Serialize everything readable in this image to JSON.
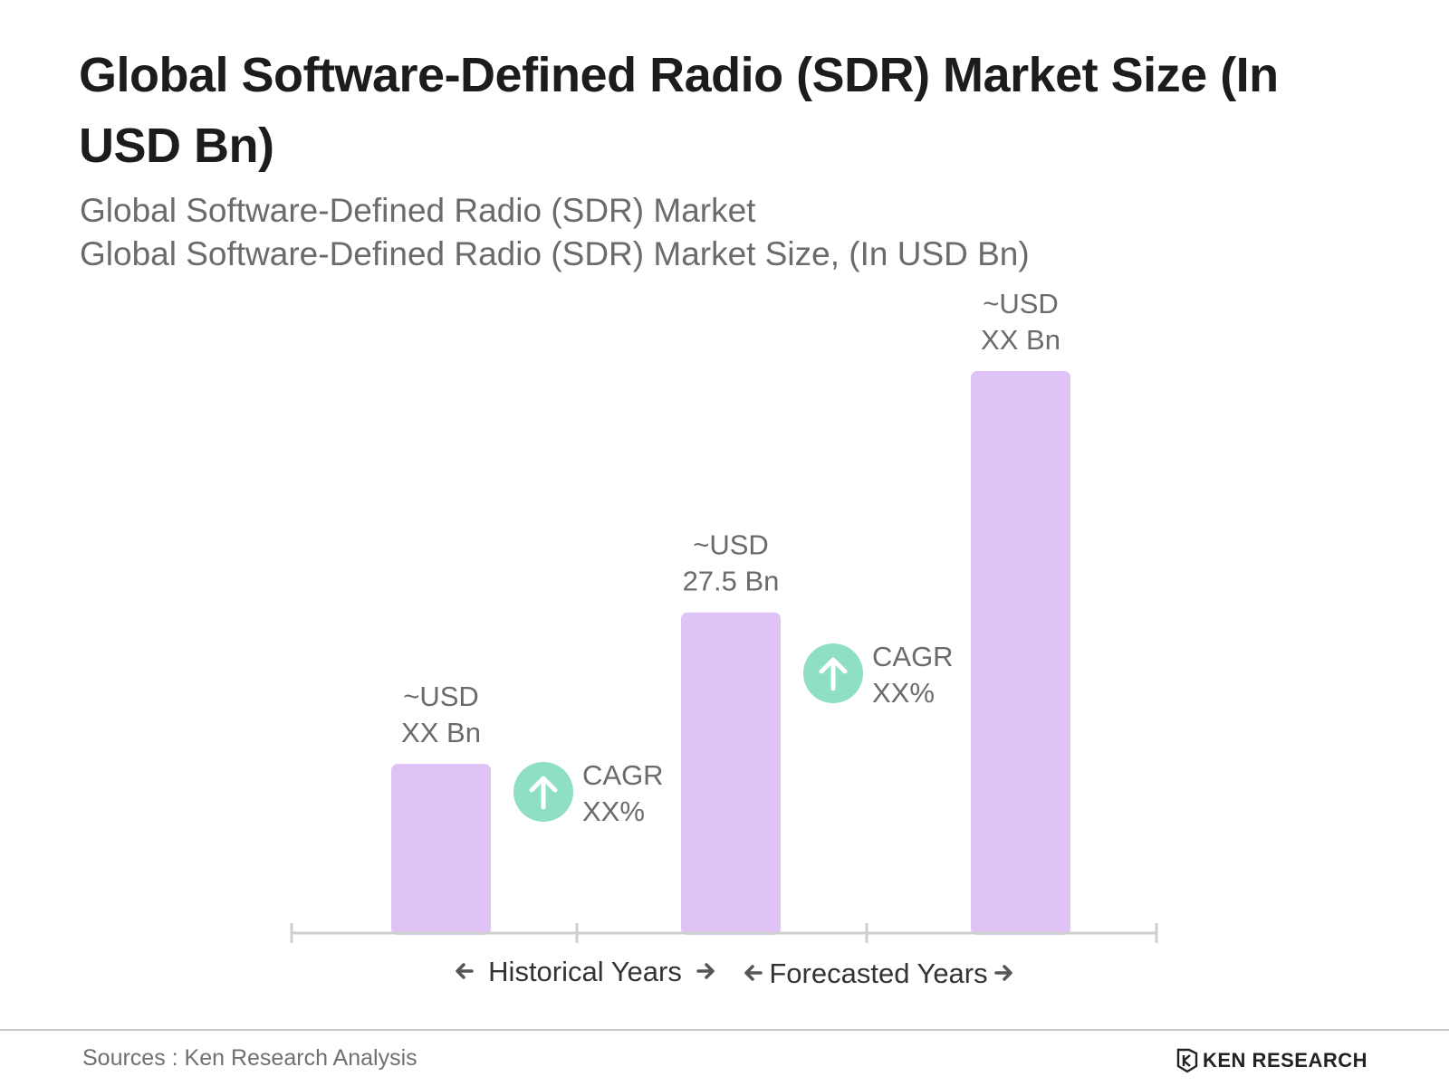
{
  "title": "Global Software-Defined Radio (SDR) Market Size (In USD Bn)",
  "subtitle_1": "Global Software-Defined Radio (SDR) Market",
  "subtitle_2": "Global Software-Defined Radio (SDR) Market Size, (In USD Bn)",
  "footer": {
    "source": "Sources : Ken Research Analysis",
    "logo_text": "KEN RESEARCH"
  },
  "colors": {
    "bar": "#dfc3f7",
    "cagr_badge": "#8fdfc5",
    "axis": "#cfcfcf",
    "label_text": "#6b6b6b"
  },
  "chart_data": {
    "type": "bar",
    "categories": [
      "",
      "",
      ""
    ],
    "values": [
      14.5,
      27.5,
      48.2
    ],
    "data_labels": [
      [
        "~USD",
        "XX Bn"
      ],
      [
        "~USD",
        "27.5 Bn"
      ],
      [
        "~USD",
        "XX Bn"
      ]
    ],
    "ylim": [
      0,
      50
    ],
    "grid": false,
    "cagr_annotations": [
      {
        "between": [
          0,
          1
        ],
        "label": "CAGR",
        "value": "XX%",
        "icon": "arrow-up-icon"
      },
      {
        "between": [
          1,
          2
        ],
        "label": "CAGR",
        "value": "XX%",
        "icon": "arrow-up-icon"
      }
    ],
    "period_labels": [
      {
        "text": "Historical Years",
        "icon_left": "arrow-left-icon",
        "icon_right": "arrow-right-icon"
      },
      {
        "text": "Forecasted Years",
        "icon_left": "arrow-left-icon",
        "icon_right": "arrow-right-icon"
      }
    ]
  }
}
